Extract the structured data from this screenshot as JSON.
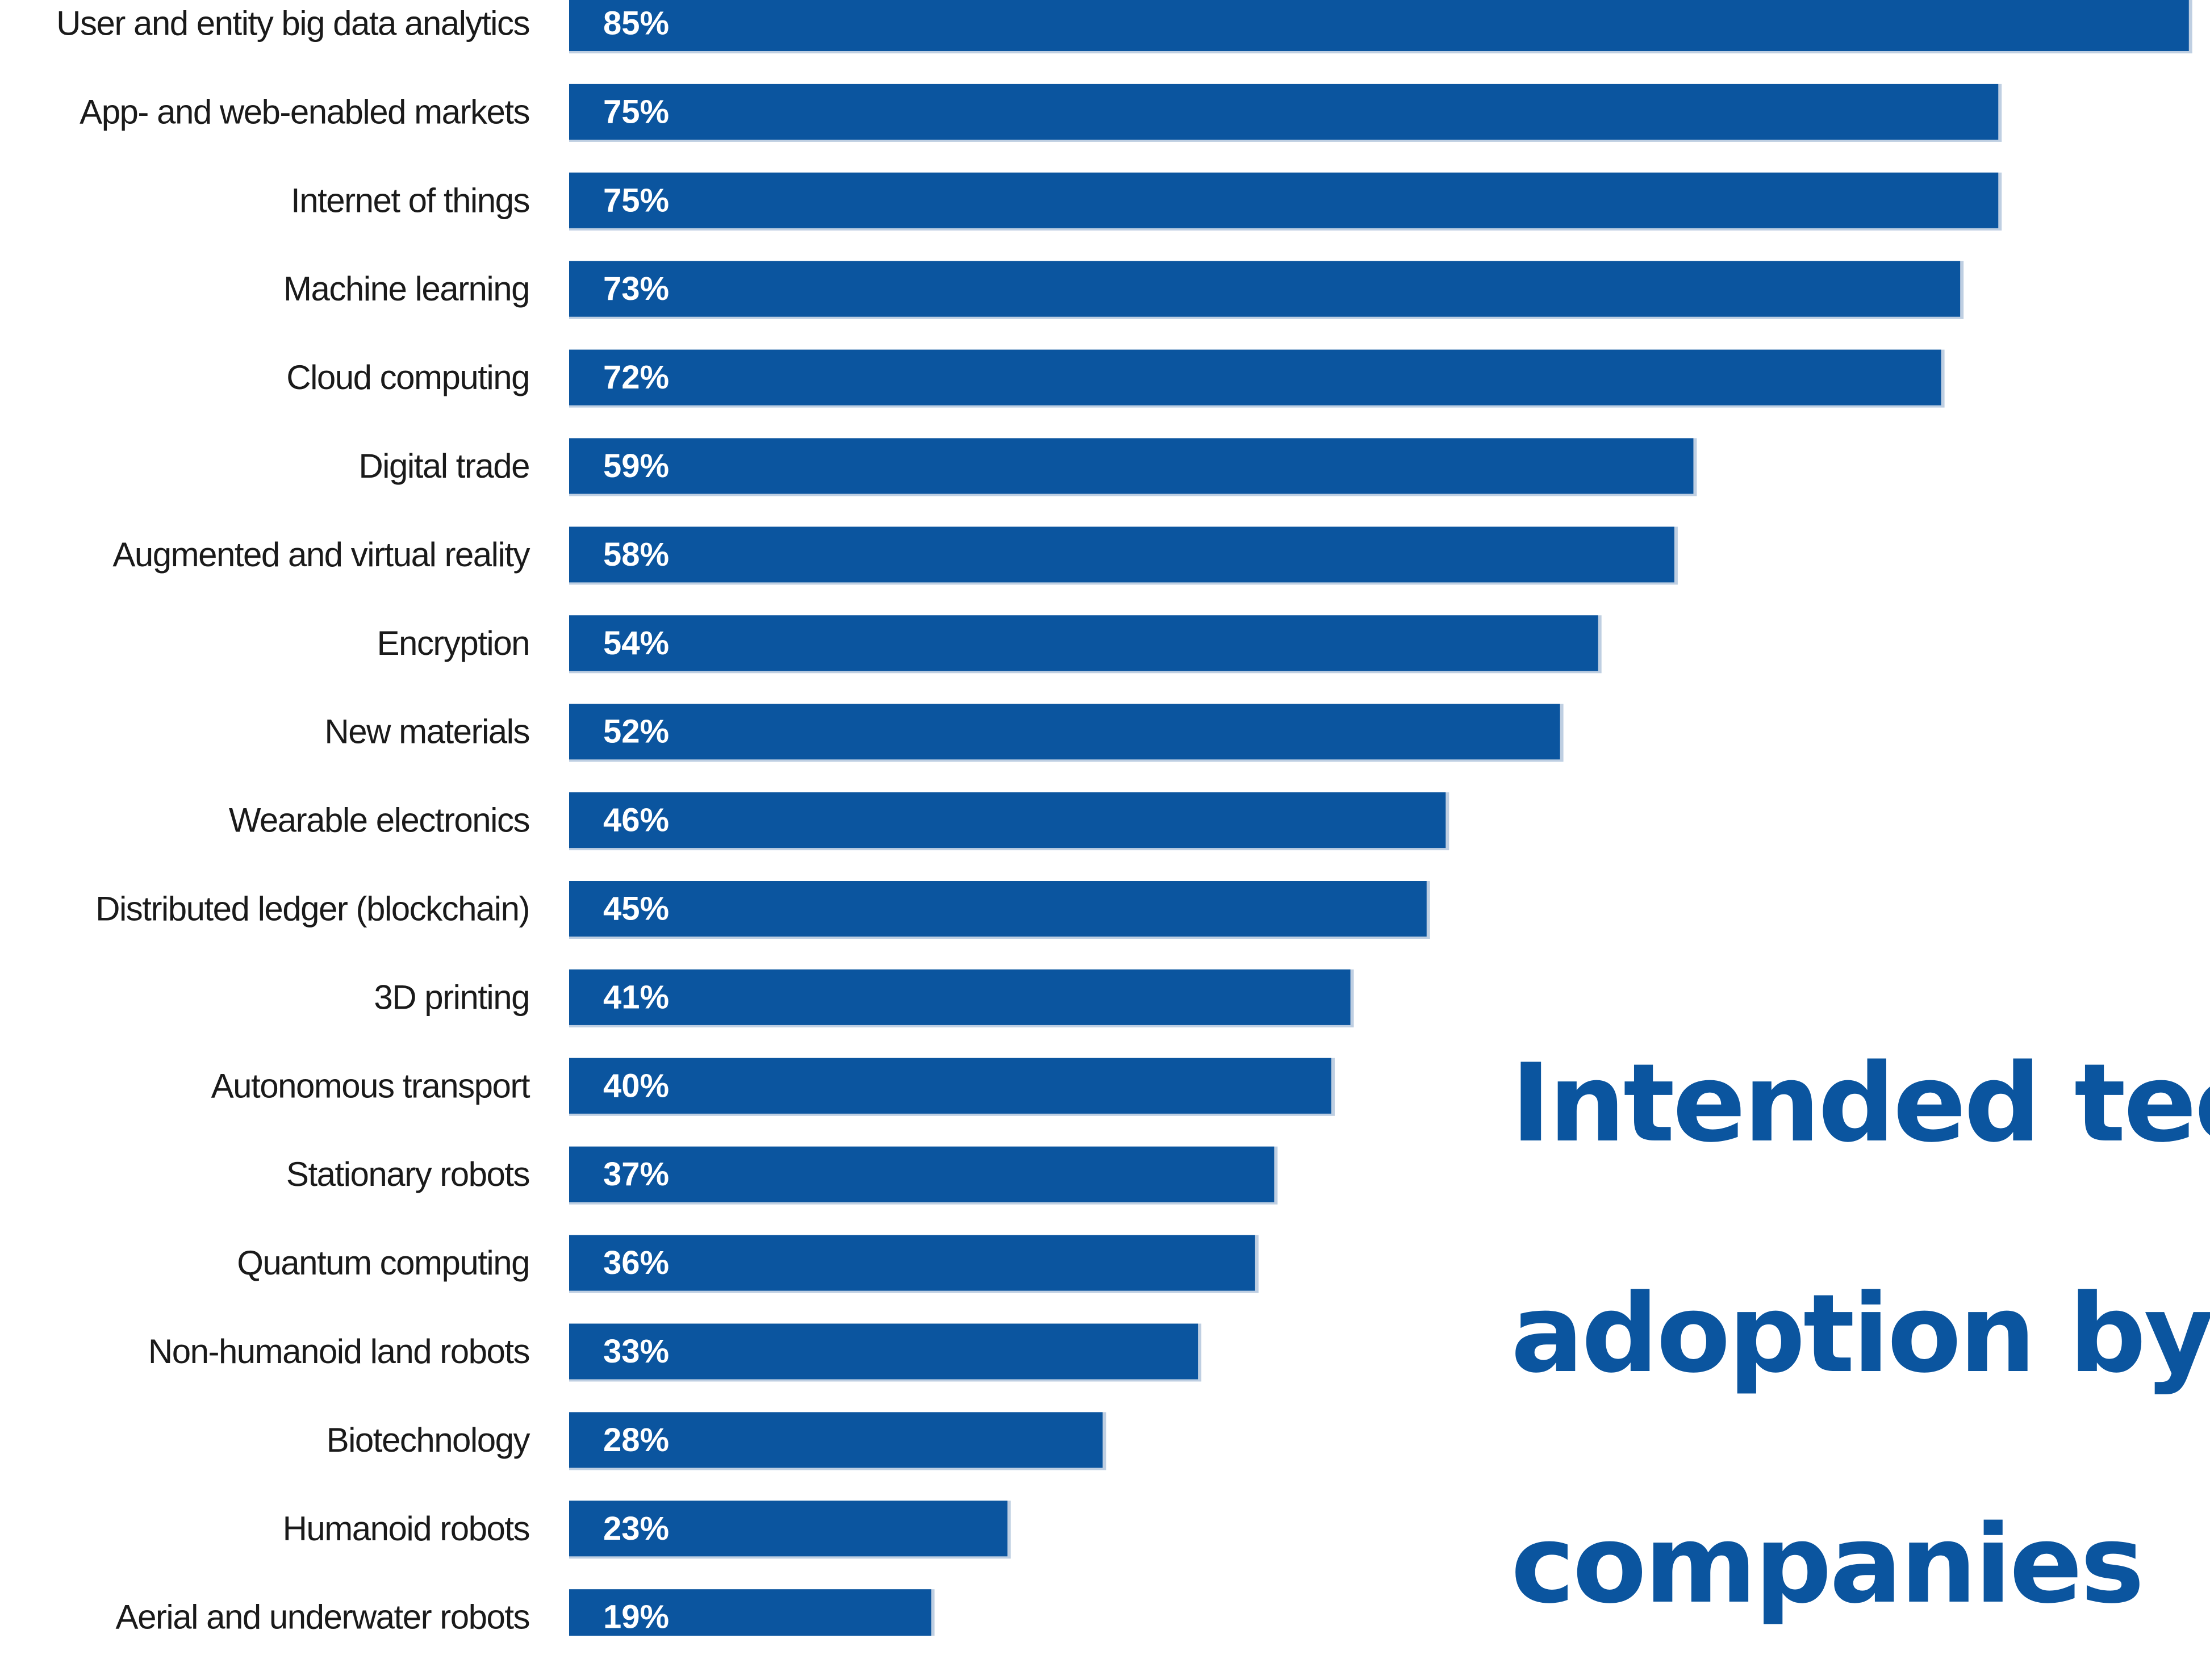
{
  "chart_data": {
    "type": "bar",
    "orientation": "horizontal",
    "categories": [
      "User and entity big data analytics",
      "App- and web-enabled markets",
      "Internet of things",
      "Machine learning",
      "Cloud computing",
      "Digital trade",
      "Augmented and virtual reality",
      "Encryption",
      "New materials",
      "Wearable electronics",
      "Distributed ledger (blockchain)",
      "3D printing",
      "Autonomous transport",
      "Stationary robots",
      "Quantum computing",
      "Non-humanoid land robots",
      "Biotechnology",
      "Humanoid robots",
      "Aerial and underwater robots"
    ],
    "values": [
      85,
      75,
      75,
      73,
      72,
      59,
      58,
      54,
      52,
      46,
      45,
      41,
      40,
      37,
      36,
      33,
      28,
      23,
      19
    ],
    "value_labels": [
      "85%",
      "75%",
      "75%",
      "73%",
      "72%",
      "59%",
      "58%",
      "54%",
      "52%",
      "46%",
      "45%",
      "41%",
      "40%",
      "37%",
      "36%",
      "33%",
      "28%",
      "23%",
      "19%"
    ],
    "title_lines": [
      "Intended tec",
      "adoption by",
      "companies"
    ],
    "xlabel": "",
    "ylabel": "",
    "xlim": [
      0,
      100
    ],
    "grid": false,
    "legend": "none",
    "colors": {
      "bar": "#0b559f",
      "bar_shadow": "#bfcfe2",
      "value_text": "#ffffff",
      "category_text": "#1a1a1a",
      "title": "#0b559f"
    }
  }
}
